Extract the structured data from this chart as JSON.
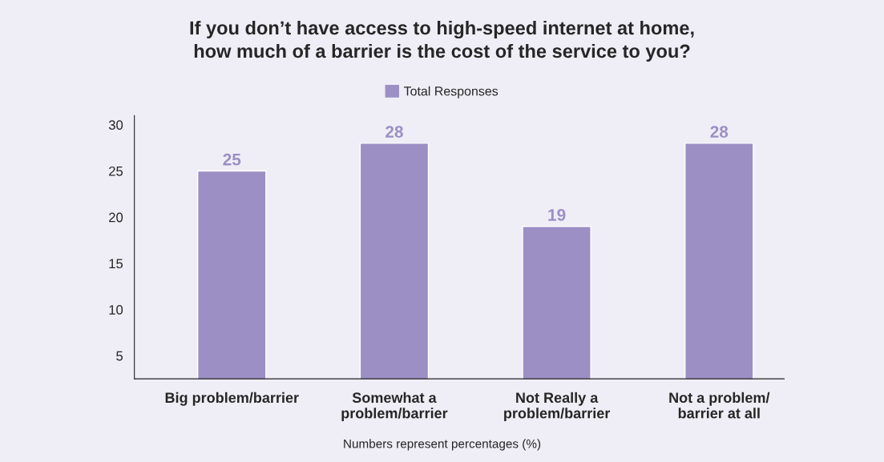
{
  "chart_data": {
    "type": "bar",
    "title": "If you don’t have access to high-speed internet at home,\nhow much of a barrier is the cost of the service to you?",
    "categories": [
      "Big problem/barrier",
      "Somewhat a\nproblem/barrier",
      "Not Really a\nproblem/barrier",
      "Not a problem/\nbarrier at all"
    ],
    "series": [
      {
        "name": "Total Responses",
        "color": "#9b8fc4",
        "values": [
          25,
          28,
          19,
          28
        ]
      }
    ],
    "ylim": [
      2.5,
      31
    ],
    "yticks": [
      5,
      10,
      15,
      20,
      25,
      30
    ],
    "grid": false,
    "legend": "top",
    "data_labels": true,
    "annotations": [
      "Numbers represent percentages (%)"
    ]
  }
}
